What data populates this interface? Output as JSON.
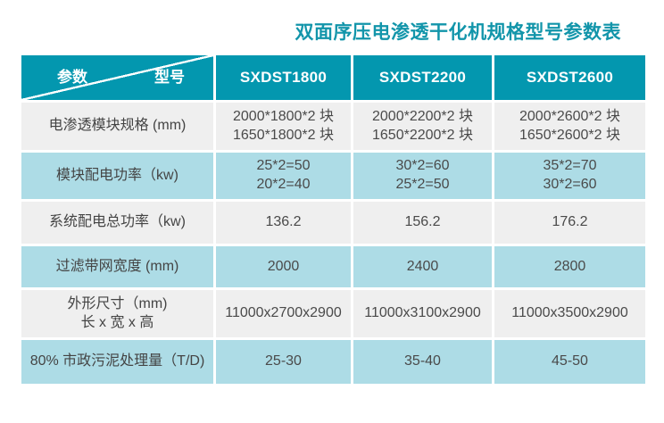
{
  "page": {
    "title": "双面序压电渗透干化机规格型号参数表"
  },
  "colors": {
    "accent_teal": "#0397AF",
    "title_teal": "#1295AA",
    "row_gray": "#EFEFEF",
    "row_blue": "#ADDCE6",
    "header_text": "#ffffff",
    "cell_text": "#4a4a4a"
  },
  "table": {
    "corner": {
      "param_label": "参数",
      "model_label": "型号"
    },
    "columns": [
      "SXDST1800",
      "SXDST2200",
      "SXDST2600"
    ],
    "rows": [
      {
        "label": "电渗透模块规格 (mm)",
        "values": [
          "2000*1800*2 块\n1650*1800*2 块",
          "2000*2200*2 块\n1650*2200*2 块",
          "2000*2600*2 块\n1650*2600*2 块"
        ]
      },
      {
        "label": "模块配电功率（kw)",
        "values": [
          "25*2=50\n20*2=40",
          "30*2=60\n25*2=50",
          "35*2=70\n30*2=60"
        ]
      },
      {
        "label": "系统配电总功率（kw)",
        "values": [
          "136.2",
          "156.2",
          "176.2"
        ]
      },
      {
        "label": "过滤带网宽度 (mm)",
        "values": [
          "2000",
          "2400",
          "2800"
        ]
      },
      {
        "label": "外形尺寸（mm)\n长 x 宽 x 高",
        "values": [
          "11000x2700x2900",
          "11000x3100x2900",
          "11000x3500x2900"
        ]
      },
      {
        "label": "80% 市政污泥处理量（T/D)",
        "values": [
          "25-30",
          "35-40",
          "45-50"
        ]
      }
    ]
  }
}
